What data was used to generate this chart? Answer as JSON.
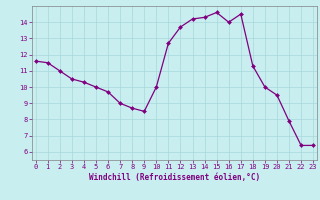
{
  "x": [
    0,
    1,
    2,
    3,
    4,
    5,
    6,
    7,
    8,
    9,
    10,
    11,
    12,
    13,
    14,
    15,
    16,
    17,
    18,
    19,
    20,
    21,
    22,
    23
  ],
  "y": [
    11.6,
    11.5,
    11.0,
    10.5,
    10.3,
    10.0,
    9.7,
    9.0,
    8.7,
    8.5,
    10.0,
    12.7,
    13.7,
    14.2,
    14.3,
    14.6,
    14.0,
    14.5,
    11.3,
    10.0,
    9.5,
    7.9,
    6.4,
    6.4
  ],
  "line_color": "#800080",
  "marker": "D",
  "marker_size": 2.0,
  "bg_color": "#c8eef0",
  "grid_color": "#a8d8da",
  "xlabel": "Windchill (Refroidissement éolien,°C)",
  "ylim": [
    5.5,
    15.0
  ],
  "xlim": [
    -0.3,
    23.3
  ],
  "yticks": [
    6,
    7,
    8,
    9,
    10,
    11,
    12,
    13,
    14
  ],
  "xticks": [
    0,
    1,
    2,
    3,
    4,
    5,
    6,
    7,
    8,
    9,
    10,
    11,
    12,
    13,
    14,
    15,
    16,
    17,
    18,
    19,
    20,
    21,
    22,
    23
  ],
  "tick_color": "#800080",
  "label_fontsize": 5.5,
  "tick_fontsize": 5.0,
  "spine_color": "#808080",
  "linewidth": 0.9
}
